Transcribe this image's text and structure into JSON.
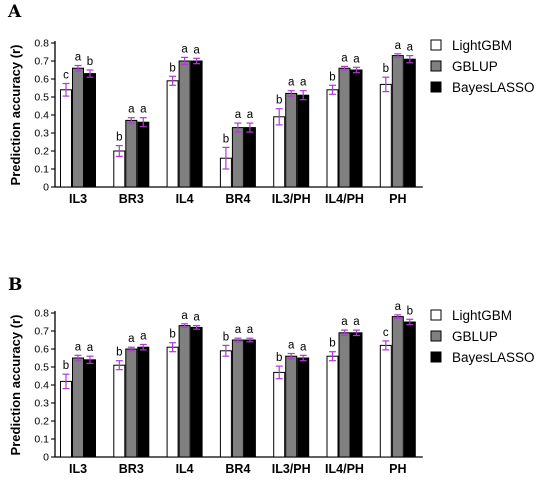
{
  "chart_data": [
    {
      "type": "bar",
      "panel_label": "A",
      "ylabel": "Prediction accuracy (r)",
      "ylim": [
        0,
        0.8
      ],
      "yticks": [
        "0",
        "0.1",
        "0.2",
        "0.3",
        "0.4",
        "0.5",
        "0.6",
        "0.7",
        "0.8"
      ],
      "categories": [
        "IL3",
        "BR3",
        "IL4",
        "BR4",
        "IL3/PH",
        "IL4/PH",
        "PH"
      ],
      "legend_position": "right",
      "series": [
        {
          "name": "LightGBM",
          "color": "#ffffff",
          "values": [
            0.54,
            0.2,
            0.59,
            0.16,
            0.39,
            0.54,
            0.57
          ],
          "errors": [
            0.035,
            0.03,
            0.025,
            0.06,
            0.045,
            0.025,
            0.04
          ],
          "labels": [
            "c",
            "b",
            "b",
            "b",
            "b",
            "b",
            "b"
          ]
        },
        {
          "name": "GBLUP",
          "color": "#808080",
          "values": [
            0.66,
            0.37,
            0.7,
            0.33,
            0.52,
            0.66,
            0.73
          ],
          "errors": [
            0.015,
            0.015,
            0.02,
            0.025,
            0.015,
            0.01,
            0.01
          ],
          "labels": [
            "a",
            "a",
            "a",
            "a",
            "a",
            "a",
            "a"
          ]
        },
        {
          "name": "BayesLASSO",
          "color": "#000000",
          "values": [
            0.63,
            0.36,
            0.7,
            0.33,
            0.51,
            0.65,
            0.71
          ],
          "errors": [
            0.02,
            0.025,
            0.015,
            0.025,
            0.025,
            0.015,
            0.02
          ],
          "labels": [
            "b",
            "a",
            "a",
            "a",
            "a",
            "a",
            "a"
          ]
        }
      ]
    },
    {
      "type": "bar",
      "panel_label": "B",
      "ylabel": "Prediction accuracy (r)",
      "ylim": [
        0,
        0.8
      ],
      "yticks": [
        "0",
        "0.1",
        "0.2",
        "0.3",
        "0.4",
        "0.5",
        "0.6",
        "0.7",
        "0.8"
      ],
      "categories": [
        "IL3",
        "BR3",
        "IL4",
        "BR4",
        "IL3/PH",
        "IL4/PH",
        "PH"
      ],
      "legend_position": "right",
      "series": [
        {
          "name": "LightGBM",
          "color": "#ffffff",
          "values": [
            0.42,
            0.51,
            0.61,
            0.59,
            0.47,
            0.56,
            0.62
          ],
          "errors": [
            0.04,
            0.025,
            0.025,
            0.03,
            0.035,
            0.025,
            0.025
          ],
          "labels": [
            "b",
            "b",
            "b",
            "b",
            "b",
            "b",
            "c"
          ]
        },
        {
          "name": "GBLUP",
          "color": "#808080",
          "values": [
            0.55,
            0.6,
            0.73,
            0.65,
            0.56,
            0.69,
            0.78
          ],
          "errors": [
            0.015,
            0.01,
            0.01,
            0.01,
            0.015,
            0.015,
            0.01
          ],
          "labels": [
            "a",
            "a",
            "a",
            "a",
            "a",
            "a",
            "a"
          ]
        },
        {
          "name": "BayesLASSO",
          "color": "#000000",
          "values": [
            0.54,
            0.61,
            0.72,
            0.65,
            0.55,
            0.69,
            0.75
          ],
          "errors": [
            0.02,
            0.015,
            0.01,
            0.01,
            0.015,
            0.015,
            0.015
          ],
          "labels": [
            "a",
            "a",
            "a",
            "a",
            "a",
            "a",
            "b"
          ]
        }
      ]
    }
  ]
}
